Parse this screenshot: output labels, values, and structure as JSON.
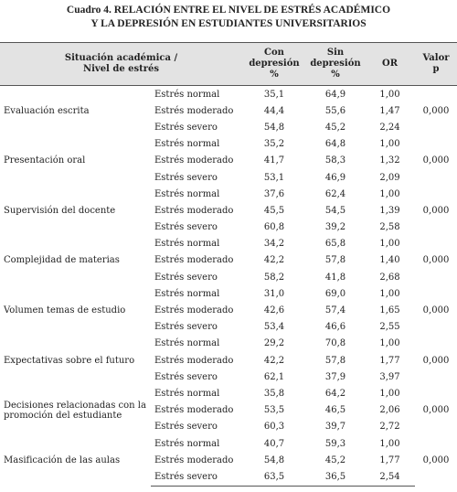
{
  "title": [
    "Cuadro 4. RELACIÓN ENTRE EL NIVEL DE ESTRÉS ACADÉMICO",
    "Y LA DEPRESIÓN EN ESTUDIANTES UNIVERSITARIOS"
  ],
  "table": {
    "header": [
      [
        "Situación académica /",
        "Nivel de estrés"
      ],
      [
        "Con",
        "depresión",
        "%"
      ],
      [
        "Sin",
        "depresión",
        "%"
      ],
      [
        "OR"
      ],
      [
        "Valor",
        "p"
      ]
    ],
    "groups": [
      {
        "label": "Evaluación escrita",
        "p": "0,000",
        "rows": [
          [
            "Estrés normal",
            "35,1",
            "64,9",
            "1,00"
          ],
          [
            "Estrés moderado",
            "44,4",
            "55,6",
            "1,47"
          ],
          [
            "Estrés severo",
            "54,8",
            "45,2",
            "2,24"
          ]
        ]
      },
      {
        "label": "Presentación oral",
        "p": "0,000",
        "rows": [
          [
            "Estrés normal",
            "35,2",
            "64,8",
            "1,00"
          ],
          [
            "Estrés moderado",
            "41,7",
            "58,3",
            "1,32"
          ],
          [
            "Estrés severo",
            "53,1",
            "46,9",
            "2,09"
          ]
        ]
      },
      {
        "label": "Supervisión del docente",
        "p": "0,000",
        "rows": [
          [
            "Estrés normal",
            "37,6",
            "62,4",
            "1,00"
          ],
          [
            "Estrés moderado",
            "45,5",
            "54,5",
            "1,39"
          ],
          [
            "Estrés severo",
            "60,8",
            "39,2",
            "2,58"
          ]
        ]
      },
      {
        "label": "Complejidad de materias",
        "p": "0,000",
        "rows": [
          [
            "Estrés normal",
            "34,2",
            "65,8",
            "1,00"
          ],
          [
            "Estrés moderado",
            "42,2",
            "57,8",
            "1,40"
          ],
          [
            "Estrés severo",
            "58,2",
            "41,8",
            "2,68"
          ]
        ]
      },
      {
        "label": "Volumen temas de estudio",
        "p": "0,000",
        "rows": [
          [
            "Estrés normal",
            "31,0",
            "69,0",
            "1,00"
          ],
          [
            "Estrés moderado",
            "42,6",
            "57,4",
            "1,65"
          ],
          [
            "Estrés severo",
            "53,4",
            "46,6",
            "2,55"
          ]
        ]
      },
      {
        "label": "Expectativas sobre el futuro",
        "p": "0,000",
        "rows": [
          [
            "Estrés normal",
            "29,2",
            "70,8",
            "1,00"
          ],
          [
            "Estrés moderado",
            "42,2",
            "57,8",
            "1,77"
          ],
          [
            "Estrés severo",
            "62,1",
            "37,9",
            "3,97"
          ]
        ]
      },
      {
        "label": "Decisiones relacionadas con la promoción del estudiante",
        "p": "0,000",
        "rows": [
          [
            "Estrés normal",
            "35,8",
            "64,2",
            "1,00"
          ],
          [
            "Estrés moderado",
            "53,5",
            "46,5",
            "2,06"
          ],
          [
            "Estrés severo",
            "60,3",
            "39,7",
            "2,72"
          ]
        ]
      },
      {
        "label": "Masificación de las aulas",
        "p": "0,000",
        "rows": [
          [
            "Estrés normal",
            "40,7",
            "59,3",
            "1,00"
          ],
          [
            "Estrés moderado",
            "54,8",
            "45,2",
            "1,77"
          ],
          [
            "Estrés severo",
            "63,5",
            "36,5",
            "2,54"
          ]
        ]
      }
    ]
  }
}
